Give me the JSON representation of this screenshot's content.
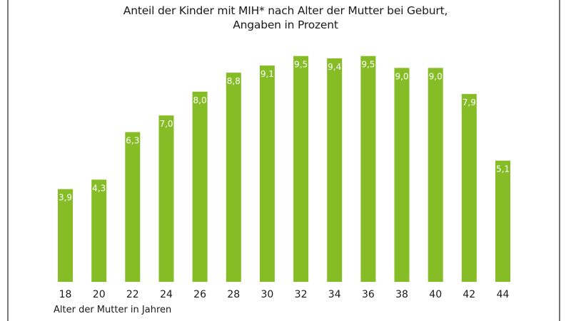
{
  "chart_data": {
    "type": "bar",
    "title": "Anteil der Kinder mit MIH* nach Alter der Mutter bei Geburt,",
    "subtitle": "Angaben in Prozent",
    "xlabel": "Alter der Mutter in Jahren",
    "ylabel": "",
    "categories": [
      "18",
      "20",
      "22",
      "24",
      "26",
      "28",
      "30",
      "32",
      "34",
      "36",
      "38",
      "40",
      "42",
      "44"
    ],
    "values": [
      3.9,
      4.3,
      6.3,
      7.0,
      8.0,
      8.8,
      9.1,
      9.5,
      9.4,
      9.5,
      9.0,
      9.0,
      7.9,
      5.1
    ],
    "value_labels": [
      "3,9",
      "4,3",
      "6,3",
      "7,0",
      "8,0",
      "8,8",
      "9,1",
      "9,5",
      "9,4",
      "9,5",
      "9,0",
      "9,0",
      "7,9",
      "5,1"
    ],
    "ylim": [
      0,
      10
    ],
    "grid": false,
    "legend": "none",
    "bar_color": "#86bc25",
    "label_color": "#ffffff"
  }
}
